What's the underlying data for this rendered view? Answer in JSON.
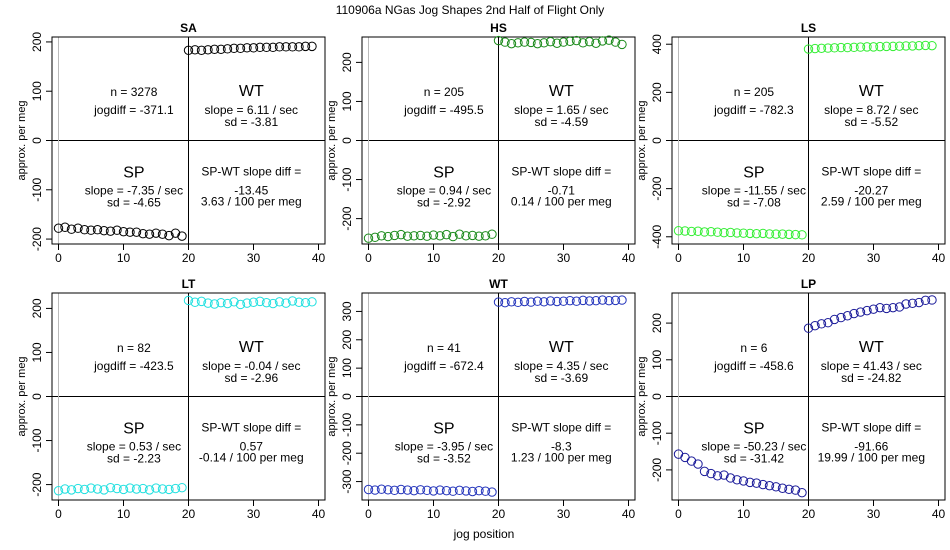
{
  "figure": {
    "title": "110906a    NGas Jog Shapes 2nd Half of Flight Only",
    "xlabel": "jog position"
  },
  "chart_data": [
    {
      "type": "scatter",
      "title": "SA",
      "color": "#000000",
      "ylabel": "approx. per meg",
      "xlim": [
        -1,
        41
      ],
      "ylim": [
        -210,
        210
      ],
      "xticks": [
        0,
        10,
        20,
        30,
        40
      ],
      "yticks": [
        -200,
        -100,
        0,
        100,
        200
      ],
      "x": [
        0,
        1,
        2,
        3,
        4,
        5,
        6,
        7,
        8,
        9,
        10,
        11,
        12,
        13,
        14,
        15,
        16,
        17,
        18,
        19,
        20,
        21,
        22,
        23,
        24,
        25,
        26,
        27,
        28,
        29,
        30,
        31,
        32,
        33,
        34,
        35,
        36,
        37,
        38,
        39
      ],
      "y": [
        -178,
        -176,
        -180,
        -178,
        -181,
        -182,
        -181,
        -183,
        -184,
        -182,
        -185,
        -186,
        -186,
        -189,
        -190,
        -188,
        -190,
        -193,
        -188,
        -194,
        183,
        184,
        183,
        184,
        185,
        185,
        186,
        187,
        187,
        188,
        188,
        189,
        189,
        189,
        190,
        190,
        190,
        190,
        191,
        191
      ],
      "annotations": {
        "n": "n = 3278",
        "jogdiff": "jogdiff = -371.1",
        "wt": "WT",
        "wt_slope": "slope = 6.11 / sec",
        "wt_sd": "sd = -3.81",
        "sp": "SP",
        "sp_slope": "slope = -7.35 / sec",
        "sp_sd": "sd = -4.65",
        "diff_label": "SP-WT slope diff =",
        "diff_value": "-13.45",
        "diff_per": "3.63 / 100 per meg"
      }
    },
    {
      "type": "scatter",
      "title": "HS",
      "color": "#1a8a1a",
      "ylabel": "approx. per meg",
      "xlim": [
        -1,
        41
      ],
      "ylim": [
        -265,
        265
      ],
      "xticks": [
        0,
        10,
        20,
        30,
        40
      ],
      "yticks": [
        -200,
        -100,
        0,
        100,
        200
      ],
      "x": [
        0,
        1,
        2,
        3,
        4,
        5,
        6,
        7,
        8,
        9,
        10,
        11,
        12,
        13,
        14,
        15,
        16,
        17,
        18,
        19,
        20,
        21,
        22,
        23,
        24,
        25,
        26,
        27,
        28,
        29,
        30,
        31,
        32,
        33,
        34,
        35,
        36,
        37,
        38,
        39
      ],
      "y": [
        -250,
        -248,
        -244,
        -246,
        -243,
        -241,
        -245,
        -244,
        -243,
        -245,
        -242,
        -244,
        -241,
        -246,
        -240,
        -244,
        -243,
        -245,
        -244,
        -240,
        256,
        252,
        248,
        250,
        252,
        251,
        248,
        250,
        253,
        249,
        252,
        254,
        256,
        250,
        253,
        249,
        255,
        257,
        252,
        246
      ],
      "annotations": {
        "n": "n = 205",
        "jogdiff": "jogdiff = -495.5",
        "wt": "WT",
        "wt_slope": "slope = 1.65 / sec",
        "wt_sd": "sd = -4.59",
        "sp": "SP",
        "sp_slope": "slope = 0.94 / sec",
        "sp_sd": "sd = -2.92",
        "diff_label": "SP-WT slope diff =",
        "diff_value": "-0.71",
        "diff_per": "0.14 / 100 per meg"
      }
    },
    {
      "type": "scatter",
      "title": "LS",
      "color": "#33ee33",
      "ylabel": "approx. per meg",
      "xlim": [
        -1,
        41
      ],
      "ylim": [
        -430,
        430
      ],
      "xticks": [
        0,
        10,
        20,
        30,
        40
      ],
      "yticks": [
        -400,
        -200,
        0,
        200,
        400
      ],
      "x": [
        0,
        1,
        2,
        3,
        4,
        5,
        6,
        7,
        8,
        9,
        10,
        11,
        12,
        13,
        14,
        15,
        16,
        17,
        18,
        19,
        20,
        21,
        22,
        23,
        24,
        25,
        26,
        27,
        28,
        29,
        30,
        31,
        32,
        33,
        34,
        35,
        36,
        37,
        38,
        39
      ],
      "y": [
        -375,
        -376,
        -378,
        -377,
        -380,
        -379,
        -381,
        -383,
        -382,
        -384,
        -385,
        -386,
        -387,
        -386,
        -388,
        -389,
        -389,
        -390,
        -391,
        -392,
        380,
        382,
        383,
        384,
        385,
        386,
        386,
        387,
        388,
        389,
        389,
        390,
        391,
        391,
        392,
        393,
        393,
        394,
        395,
        394
      ],
      "annotations": {
        "n": "n = 205",
        "jogdiff": "jogdiff = -782.3",
        "wt": "WT",
        "wt_slope": "slope = 8.72 / sec",
        "wt_sd": "sd = -5.52",
        "sp": "SP",
        "sp_slope": "slope = -11.55 / sec",
        "sp_sd": "sd = -7.08",
        "diff_label": "SP-WT slope diff =",
        "diff_value": "-20.27",
        "diff_per": "2.59 / 100 per meg"
      }
    },
    {
      "type": "scatter",
      "title": "LT",
      "color": "#22e0e0",
      "ylabel": "approx. per meg",
      "xlim": [
        -1,
        41
      ],
      "ylim": [
        -235,
        235
      ],
      "xticks": [
        0,
        10,
        20,
        30,
        40
      ],
      "yticks": [
        -200,
        -100,
        0,
        100,
        200
      ],
      "x": [
        0,
        1,
        2,
        3,
        4,
        5,
        6,
        7,
        8,
        9,
        10,
        11,
        12,
        13,
        14,
        15,
        16,
        17,
        18,
        19,
        20,
        21,
        22,
        23,
        24,
        25,
        26,
        27,
        28,
        29,
        30,
        31,
        32,
        33,
        34,
        35,
        36,
        37,
        38,
        39
      ],
      "y": [
        -214,
        -210,
        -212,
        -209,
        -211,
        -208,
        -210,
        -212,
        -207,
        -209,
        -211,
        -208,
        -210,
        -209,
        -212,
        -208,
        -210,
        -211,
        -209,
        -207,
        218,
        214,
        216,
        212,
        210,
        213,
        211,
        215,
        209,
        212,
        214,
        216,
        213,
        211,
        215,
        212,
        217,
        214,
        213,
        215
      ],
      "annotations": {
        "n": "n = 82",
        "jogdiff": "jogdiff = -423.5",
        "wt": "WT",
        "wt_slope": "slope = -0.04 / sec",
        "wt_sd": "sd = -2.96",
        "sp": "SP",
        "sp_slope": "slope = 0.53 / sec",
        "sp_sd": "sd = -2.23",
        "diff_label": "SP-WT slope diff =",
        "diff_value": "0.57",
        "diff_per": "-0.14 / 100 per meg"
      }
    },
    {
      "type": "scatter",
      "title": "WT",
      "color": "#2233bb",
      "ylabel": "approx. per meg",
      "xlim": [
        -1,
        41
      ],
      "ylim": [
        -365,
        365
      ],
      "xticks": [
        0,
        10,
        20,
        30,
        40
      ],
      "yticks": [
        -300,
        -200,
        -100,
        0,
        100,
        200,
        300
      ],
      "x": [
        0,
        1,
        2,
        3,
        4,
        5,
        6,
        7,
        8,
        9,
        10,
        11,
        12,
        13,
        14,
        15,
        16,
        17,
        18,
        19,
        20,
        21,
        22,
        23,
        24,
        25,
        26,
        27,
        28,
        29,
        30,
        31,
        32,
        33,
        34,
        35,
        36,
        37,
        38,
        39
      ],
      "y": [
        -328,
        -330,
        -327,
        -329,
        -331,
        -328,
        -330,
        -332,
        -329,
        -331,
        -333,
        -330,
        -332,
        -334,
        -331,
        -333,
        -335,
        -332,
        -334,
        -337,
        333,
        331,
        334,
        332,
        335,
        333,
        336,
        334,
        337,
        335,
        336,
        338,
        336,
        339,
        337,
        338,
        340,
        338,
        339,
        340
      ],
      "annotations": {
        "n": "n = 41",
        "jogdiff": "jogdiff = -672.4",
        "wt": "WT",
        "wt_slope": "slope = 4.35 / sec",
        "wt_sd": "sd = -3.69",
        "sp": "SP",
        "sp_slope": "slope = -3.95 / sec",
        "sp_sd": "sd = -3.52",
        "diff_label": "SP-WT slope diff =",
        "diff_value": "-8.3",
        "diff_per": "1.23 / 100 per meg"
      }
    },
    {
      "type": "scatter",
      "title": "LP",
      "color": "#1a1a99",
      "ylabel": "approx. per meg",
      "xlim": [
        -1,
        41
      ],
      "ylim": [
        -282,
        282
      ],
      "xticks": [
        0,
        10,
        20,
        30,
        40
      ],
      "yticks": [
        -200,
        -100,
        0,
        100,
        200
      ],
      "x": [
        0,
        1,
        2,
        3,
        4,
        5,
        6,
        7,
        8,
        9,
        10,
        11,
        12,
        13,
        14,
        15,
        16,
        17,
        18,
        19,
        20,
        21,
        22,
        23,
        24,
        25,
        26,
        27,
        28,
        29,
        30,
        31,
        32,
        33,
        34,
        35,
        36,
        37,
        38,
        39
      ],
      "y": [
        -157,
        -166,
        -176,
        -184,
        -204,
        -210,
        -216,
        -214,
        -222,
        -227,
        -230,
        -234,
        -236,
        -240,
        -243,
        -246,
        -250,
        -253,
        -255,
        -262,
        186,
        193,
        198,
        201,
        210,
        215,
        220,
        226,
        230,
        234,
        238,
        242,
        240,
        242,
        244,
        252,
        254,
        256,
        262,
        263
      ],
      "annotations": {
        "n": "n = 6",
        "jogdiff": "jogdiff = -458.6",
        "wt": "WT",
        "wt_slope": "slope = 41.43 / sec",
        "wt_sd": "sd = -24.82",
        "sp": "SP",
        "sp_slope": "slope = -50.23 / sec",
        "sp_sd": "sd = -31.42",
        "diff_label": "SP-WT slope diff =",
        "diff_value": "-91.66",
        "diff_per": "19.99 / 100 per meg"
      }
    }
  ]
}
